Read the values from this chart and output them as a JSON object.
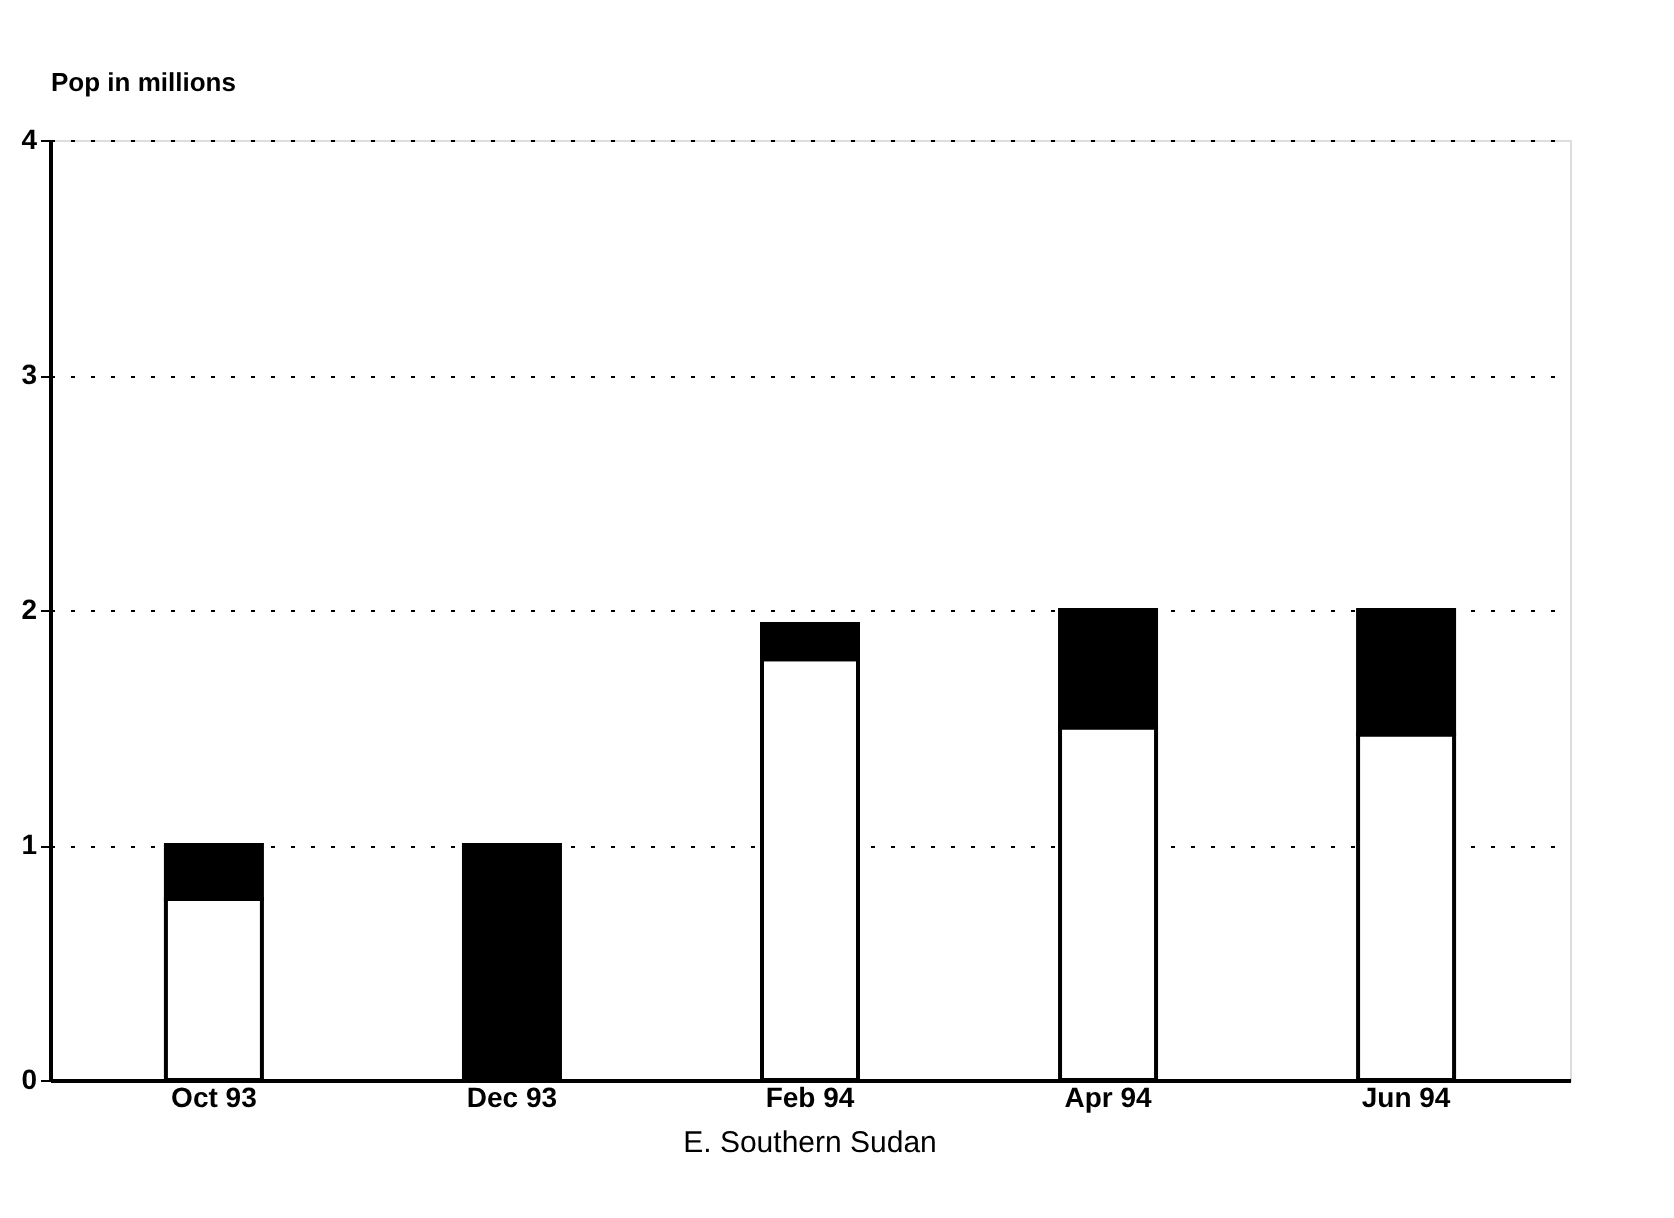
{
  "chart_data": {
    "type": "bar",
    "stacked": true,
    "ylabel": "Pop in millions",
    "categories": [
      "Oct 93",
      "Dec 93",
      "Feb 94",
      "Apr 94",
      "Jun 94"
    ],
    "series": [
      {
        "color": "#ffffff",
        "values": [
          0.77,
          0,
          1.79,
          1.5,
          1.47
        ]
      },
      {
        "color": "#000000",
        "values": [
          0.23,
          1.0,
          0.15,
          0.5,
          0.53
        ]
      }
    ],
    "ylim": [
      0,
      4
    ],
    "yticks": [
      0,
      1,
      2,
      3,
      4
    ],
    "grid": "y",
    "legend": false,
    "annotations": [
      "E. Southern Sudan"
    ]
  }
}
